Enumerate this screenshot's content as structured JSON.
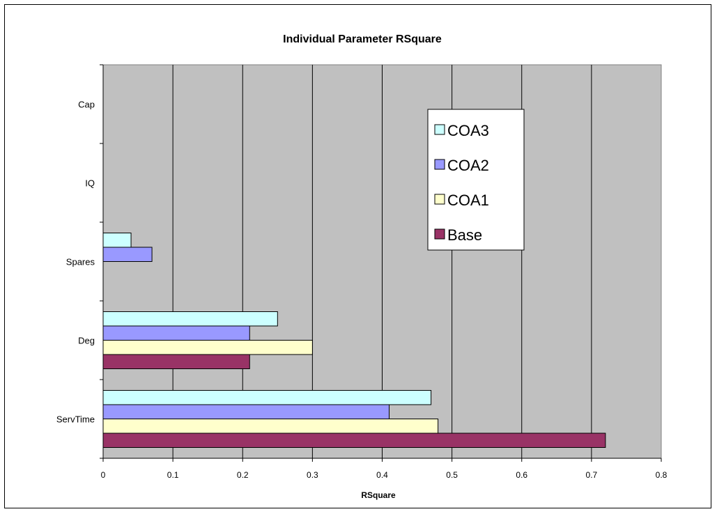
{
  "chart_data": {
    "type": "bar",
    "orientation": "horizontal",
    "title": "Individual Parameter RSquare",
    "xlabel": "RSquare",
    "ylabel": "",
    "xlim": [
      0,
      0.8
    ],
    "x_ticks": [
      "0",
      "0.1",
      "0.2",
      "0.3",
      "0.4",
      "0.5",
      "0.6",
      "0.7",
      "0.8"
    ],
    "categories": [
      "ServTime",
      "Deg",
      "Spares",
      "IQ",
      "Cap"
    ],
    "series": [
      {
        "name": "Base",
        "color": "#993366",
        "values": [
          0.72,
          0.21,
          0,
          0,
          0
        ]
      },
      {
        "name": "COA1",
        "color": "#FFFFCC",
        "values": [
          0.48,
          0.3,
          0,
          0,
          0
        ]
      },
      {
        "name": "COA2",
        "color": "#9999FF",
        "values": [
          0.41,
          0.21,
          0.07,
          0,
          0
        ]
      },
      {
        "name": "COA3",
        "color": "#CCFFFF",
        "values": [
          0.47,
          0.25,
          0.04,
          0,
          0
        ]
      }
    ],
    "legend_order": [
      "COA3",
      "COA2",
      "COA1",
      "Base"
    ],
    "legend_position": "inside-right",
    "grid": true,
    "plot_background": "#C0C0C0"
  }
}
